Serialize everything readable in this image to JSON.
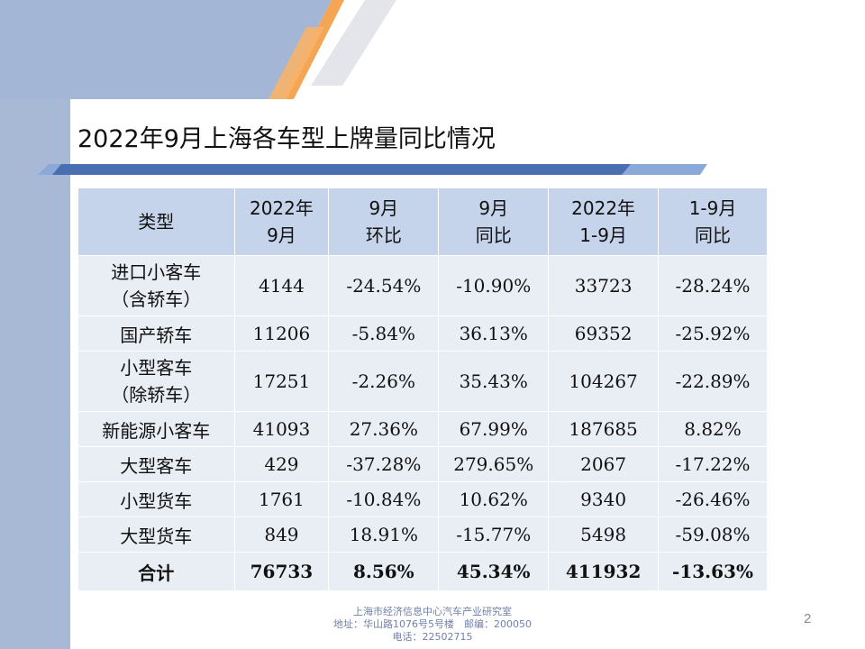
{
  "slide": {
    "title": "2022年9月上海各车型上牌量同比情况",
    "page_number": "2"
  },
  "table": {
    "headers": [
      [
        "类型"
      ],
      [
        "2022年",
        "9月"
      ],
      [
        "9月",
        "环比"
      ],
      [
        "9月",
        "同比"
      ],
      [
        "2022年",
        "1-9月"
      ],
      [
        "1-9月",
        "同比"
      ]
    ],
    "rows": [
      {
        "type": [
          "进口小客车",
          "（含轿车）"
        ],
        "sep2022": "4144",
        "mom": "-24.54%",
        "yoy": "-10.90%",
        "ytd": "33723",
        "ytd_yoy": "-28.24%"
      },
      {
        "type": [
          "国产轿车"
        ],
        "sep2022": "11206",
        "mom": "-5.84%",
        "yoy": "36.13%",
        "ytd": "69352",
        "ytd_yoy": "-25.92%"
      },
      {
        "type": [
          "小型客车",
          "（除轿车）"
        ],
        "sep2022": "17251",
        "mom": "-2.26%",
        "yoy": "35.43%",
        "ytd": "104267",
        "ytd_yoy": "-22.89%"
      },
      {
        "type": [
          "新能源小客车"
        ],
        "sep2022": "41093",
        "mom": "27.36%",
        "yoy": "67.99%",
        "ytd": "187685",
        "ytd_yoy": "8.82%"
      },
      {
        "type": [
          "大型客车"
        ],
        "sep2022": "429",
        "mom": "-37.28%",
        "yoy": "279.65%",
        "ytd": "2067",
        "ytd_yoy": "-17.22%"
      },
      {
        "type": [
          "小型货车"
        ],
        "sep2022": "1761",
        "mom": "-10.84%",
        "yoy": "10.62%",
        "ytd": "9340",
        "ytd_yoy": "-26.46%"
      },
      {
        "type": [
          "大型货车"
        ],
        "sep2022": "849",
        "mom": "18.91%",
        "yoy": "-15.77%",
        "ytd": "5498",
        "ytd_yoy": "-59.08%"
      }
    ],
    "total": {
      "type": "合计",
      "sep2022": "76733",
      "mom": "8.56%",
      "yoy": "45.34%",
      "ytd": "411932",
      "ytd_yoy": "-13.63%"
    }
  },
  "footer": {
    "line1": "上海市经济信息中心汽车产业研究室",
    "line2": "地址：华山路1076号5号楼　邮编：200050",
    "line3": "电话：22502715"
  },
  "colors": {
    "left_band": "#a8b9d6",
    "top_band": "#8ea5cb",
    "orange": "#f4a655",
    "header_fill": "#c5d4ea",
    "cell_fill": "#e9edf4",
    "divider_dark": "#4a6fb0",
    "divider_light": "#8aa8d8"
  }
}
